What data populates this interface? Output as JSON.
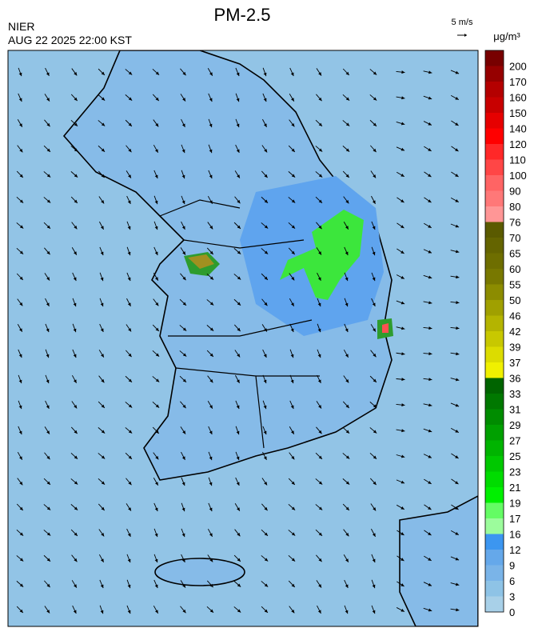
{
  "header": {
    "title": "PM-2.5",
    "agency": "NIER",
    "time": "AUG 22 2025 22:00 KST",
    "wind_scale": "5 m/s"
  },
  "colorbar": {
    "unit": "μg/m³",
    "levels": [
      0,
      3,
      6,
      9,
      12,
      16,
      17,
      19,
      21,
      23,
      25,
      27,
      29,
      31,
      33,
      36,
      37,
      39,
      42,
      46,
      50,
      55,
      60,
      65,
      70,
      76,
      80,
      90,
      100,
      110,
      120,
      140,
      150,
      160,
      170,
      200
    ],
    "colors": [
      "#a8d0e8",
      "#8ec3e6",
      "#7ab4e8",
      "#65a8ea",
      "#3c96f0",
      "#9cfc9c",
      "#64fc64",
      "#00f000",
      "#00dc00",
      "#00c800",
      "#00b400",
      "#00a000",
      "#008c00",
      "#007800",
      "#006400",
      "#f0f000",
      "#dcdc00",
      "#c8c800",
      "#b4b400",
      "#a0a000",
      "#8c8c00",
      "#787800",
      "#6e6e00",
      "#646400",
      "#5a5a00",
      "#ff9696",
      "#ff7878",
      "#ff6464",
      "#ff4646",
      "#ff2828",
      "#ff0000",
      "#e60000",
      "#c80000",
      "#b40000",
      "#960000",
      "#780000"
    ]
  }
}
